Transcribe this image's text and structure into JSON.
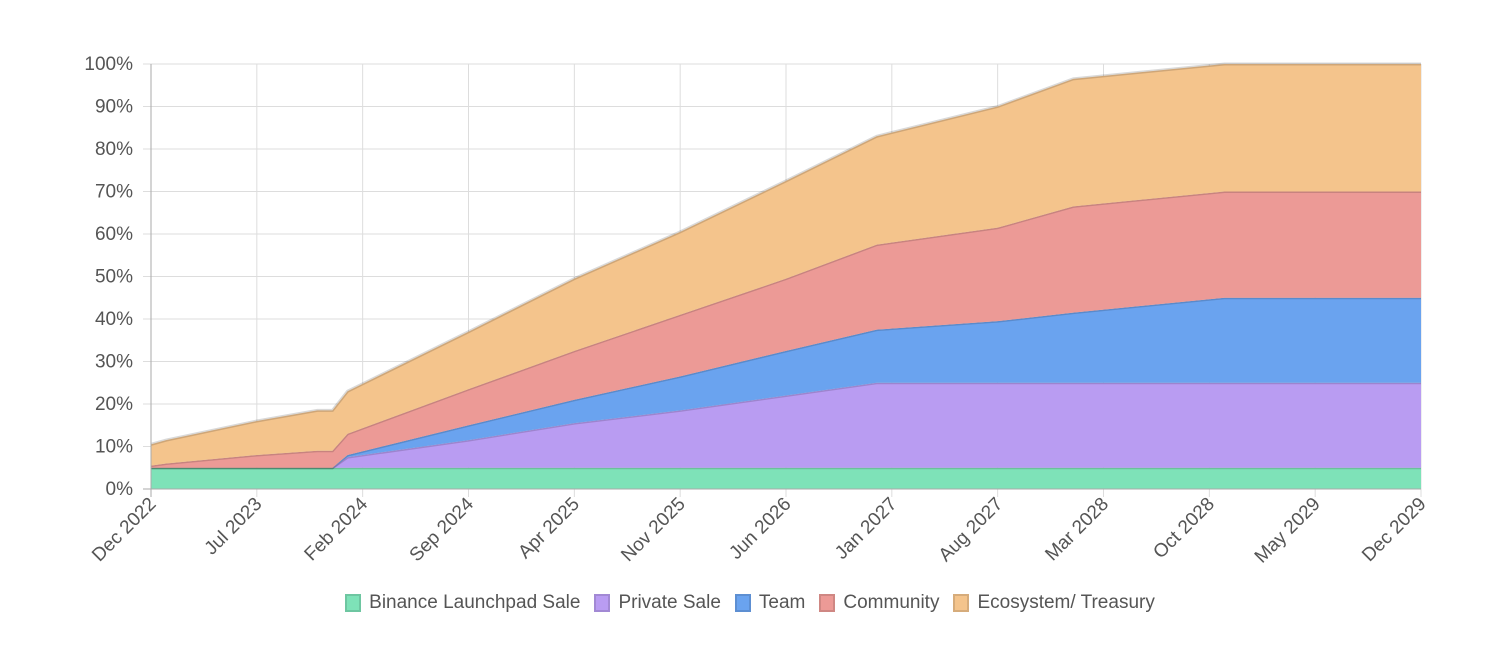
{
  "chart_data": {
    "type": "area",
    "stacked": true,
    "title": "",
    "xlabel": "",
    "ylabel": "",
    "x_tick_labels": [
      "Dec 2022",
      "Jul 2023",
      "Feb 2024",
      "Sep 2024",
      "Apr 2025",
      "Nov 2025",
      "Jun 2026",
      "Jan 2027",
      "Aug 2027",
      "Mar 2028",
      "Oct 2028",
      "May 2029",
      "Dec 2029"
    ],
    "y_tick_labels": [
      "0%",
      "10%",
      "20%",
      "30%",
      "40%",
      "50%",
      "60%",
      "70%",
      "80%",
      "90%",
      "100%"
    ],
    "ylim": [
      0,
      100
    ],
    "xlim": [
      "2022-12",
      "2029-12"
    ],
    "grid": true,
    "legend_position": "bottom",
    "x": [
      "2022-12",
      "2023-01",
      "2023-07",
      "2023-11",
      "2023-12",
      "2024-01",
      "2024-09",
      "2025-04",
      "2025-11",
      "2026-06",
      "2026-12",
      "2027-08",
      "2028-01",
      "2028-11",
      "2029-05",
      "2029-12"
    ],
    "series": [
      {
        "name": "Binance Launchpad Sale",
        "color": "#7ee2b8",
        "values": [
          5,
          5,
          5,
          5,
          5,
          5,
          5,
          5,
          5,
          5,
          5,
          5,
          5,
          5,
          5,
          5
        ]
      },
      {
        "name": "Private Sale",
        "color": "#b99cf2",
        "values": [
          0,
          0,
          0,
          0,
          0,
          2.5,
          6.5,
          10.5,
          13.5,
          17,
          20,
          20,
          20,
          20,
          20,
          20
        ]
      },
      {
        "name": "Team",
        "color": "#6aa3ef",
        "values": [
          0,
          0,
          0,
          0,
          0,
          0.5,
          3.5,
          5.5,
          8,
          10.5,
          12.5,
          14.5,
          16.5,
          20,
          20,
          20
        ]
      },
      {
        "name": "Community",
        "color": "#ec9a96",
        "values": [
          0.5,
          1,
          3,
          4,
          4,
          5,
          8.5,
          11.5,
          14.5,
          17,
          20,
          22,
          25,
          25,
          25,
          25
        ]
      },
      {
        "name": "Ecosystem/ Treasury",
        "color": "#f4c48c",
        "values": [
          5,
          5.5,
          8,
          9.5,
          9.5,
          10,
          13.5,
          17,
          19.5,
          23,
          25.5,
          28.5,
          30,
          30,
          30,
          30
        ]
      }
    ]
  }
}
